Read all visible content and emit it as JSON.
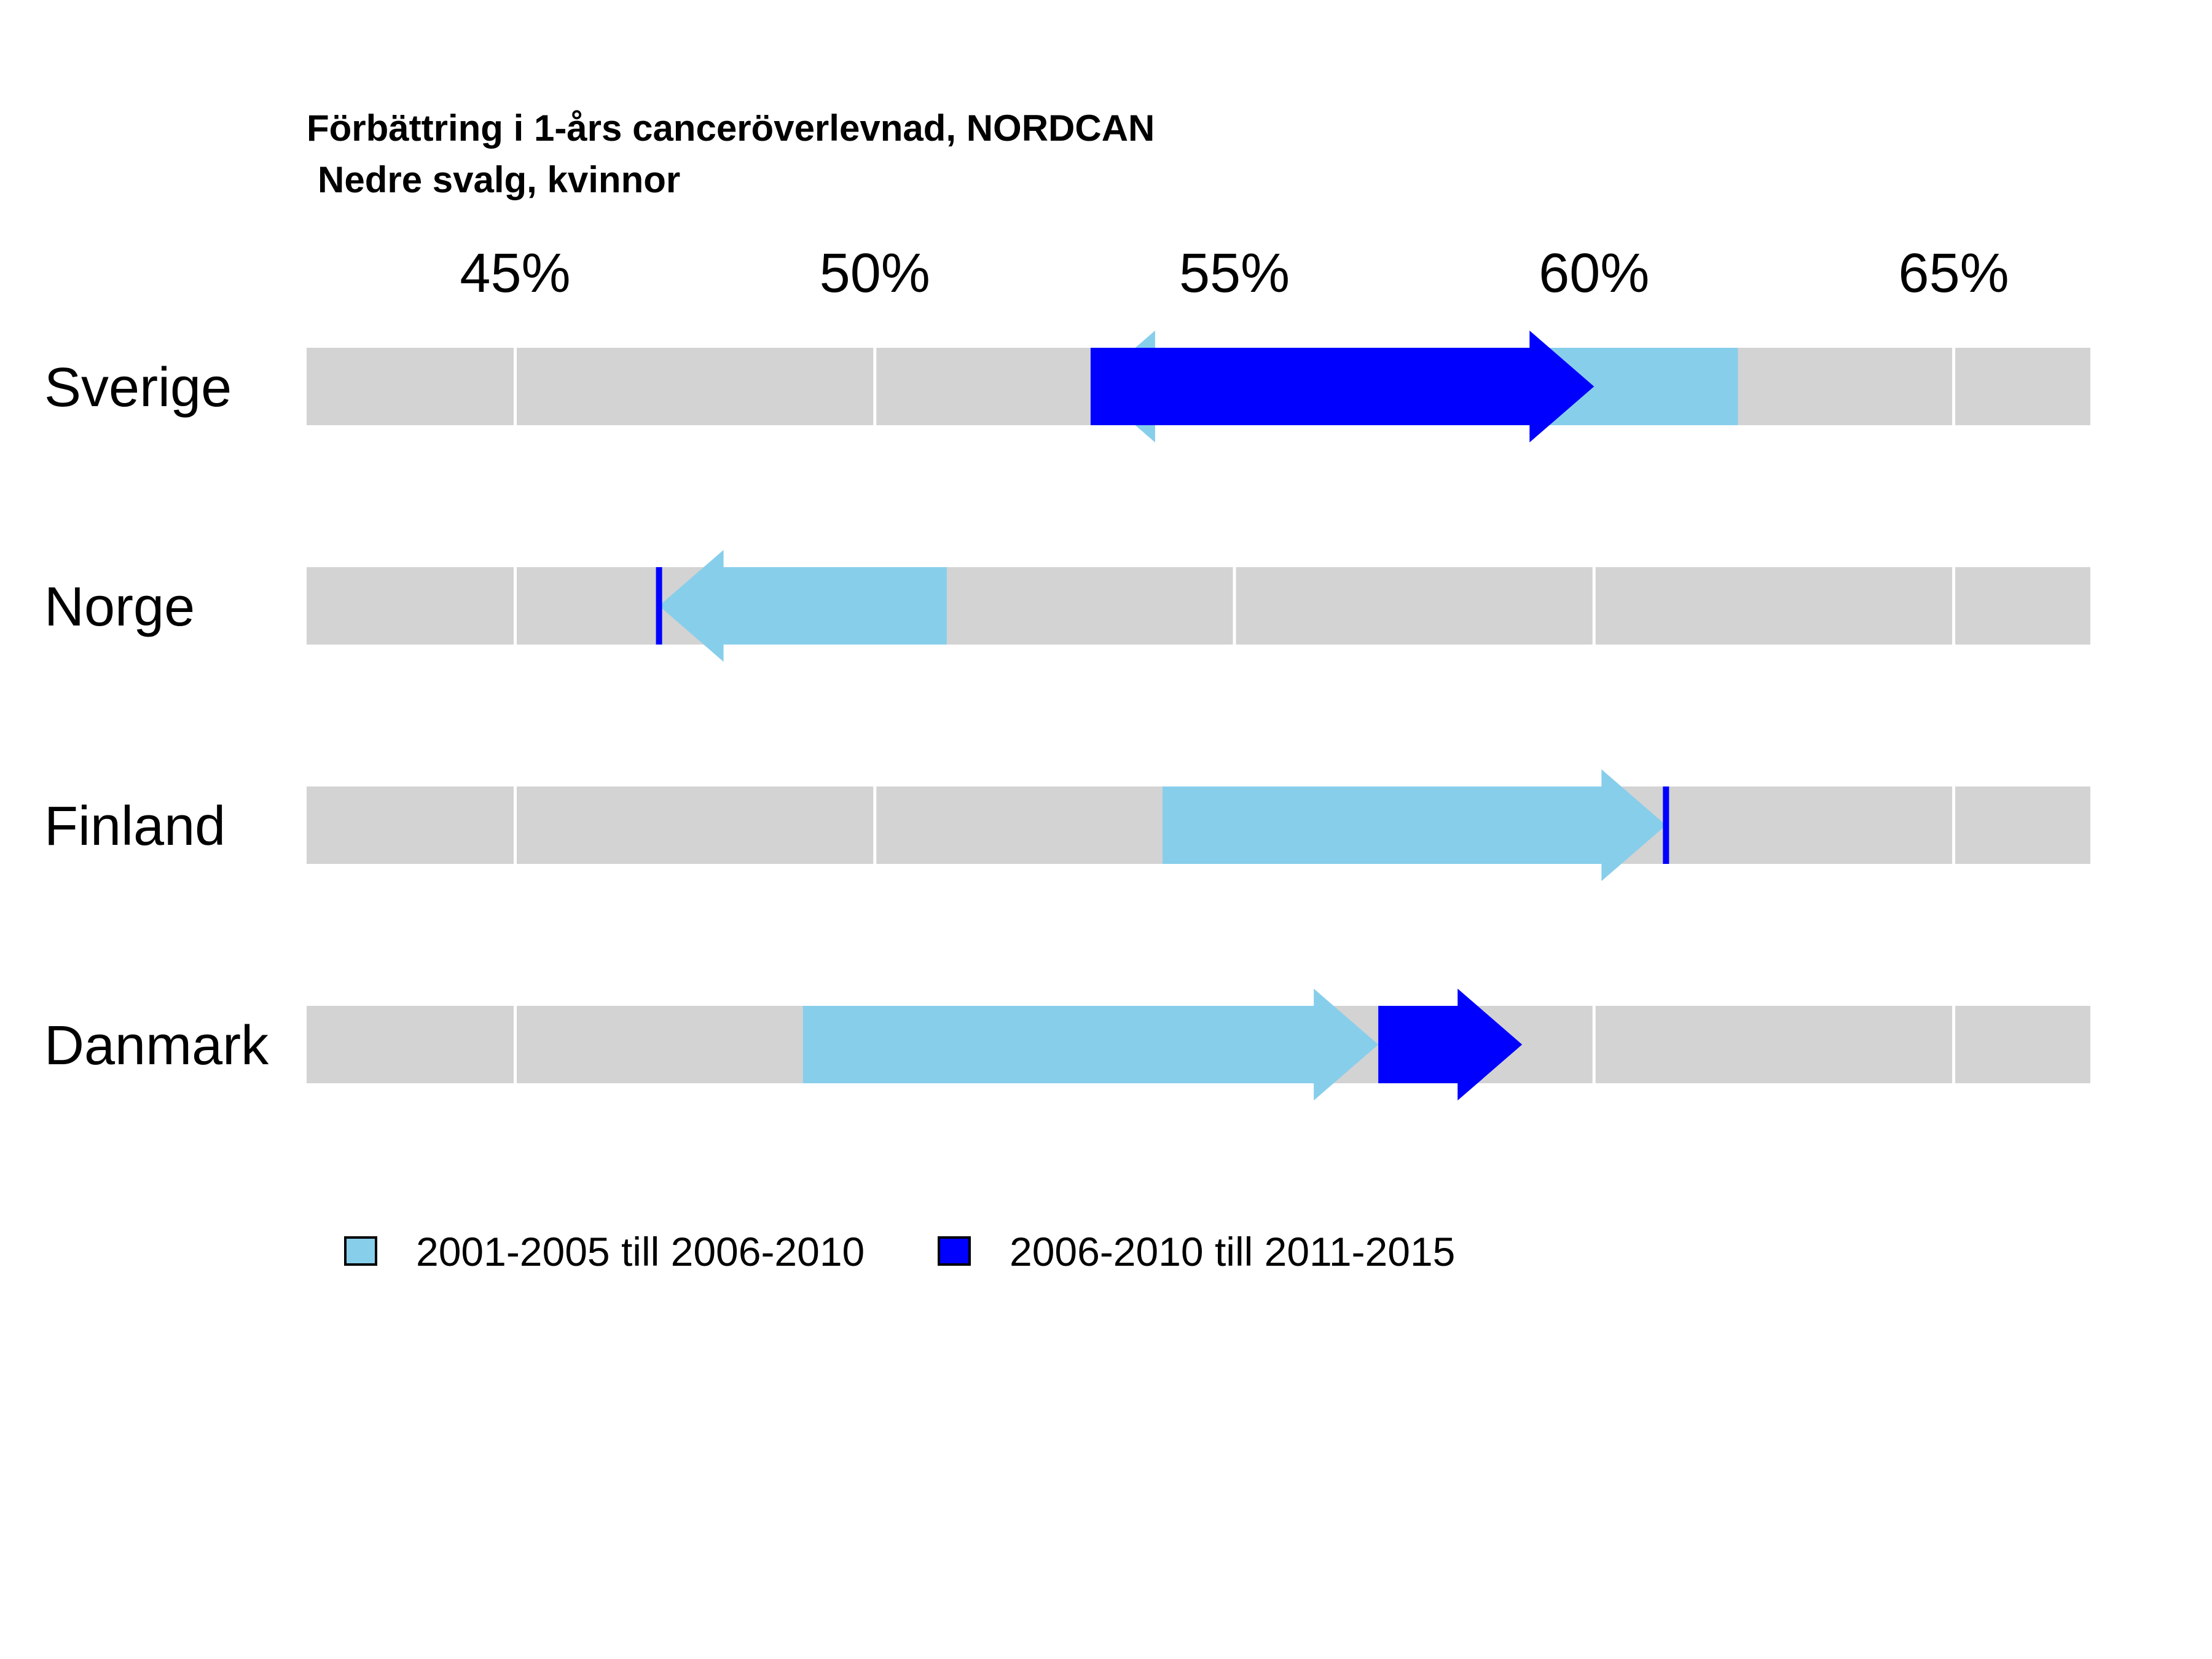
{
  "chart_data": {
    "type": "arrow",
    "title": "Förbättring i 1-års canceröverlevnad, NORDCAN",
    "subtitle": "Nedre svalg, kvinnor",
    "axis": {
      "min": 42.1,
      "max": 66.9,
      "ticks": [
        45,
        50,
        55,
        60,
        65
      ],
      "tick_labels": [
        "45%",
        "50%",
        "55%",
        "60%",
        "65%"
      ],
      "position": "top",
      "grid": true
    },
    "periods": [
      "2001-2005",
      "2006-2010",
      "2011-2015"
    ],
    "series": [
      {
        "name": "2001-2005 till 2006-2010",
        "color": "#87CEEB",
        "from_period": 0,
        "to_period": 1
      },
      {
        "name": "2006-2010 till 2011-2015",
        "color": "#0000FF",
        "from_period": 1,
        "to_period": 2
      }
    ],
    "countries": [
      {
        "name": "Sverige",
        "values": [
          62,
          53,
          60
        ]
      },
      {
        "name": "Norge",
        "values": [
          51,
          47,
          47
        ]
      },
      {
        "name": "Finland",
        "values": [
          54,
          61,
          61
        ]
      },
      {
        "name": "Danmark",
        "values": [
          49,
          57,
          59
        ]
      }
    ],
    "legend_position": "bottom",
    "colors": {
      "track": "#D3D3D3",
      "grid": "#FFFFFF"
    }
  }
}
